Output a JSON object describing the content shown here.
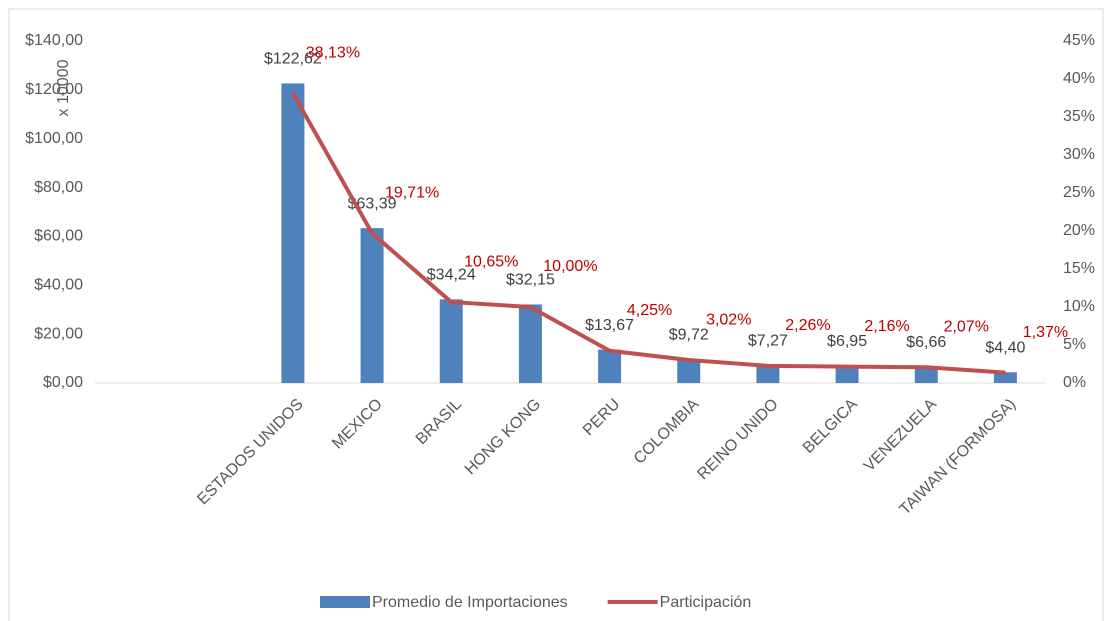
{
  "chart_data": {
    "type": "combo",
    "y_axis_label": "x 10000",
    "categories": [
      null,
      null,
      "ESTADOS UNIDOS",
      "MEXICO",
      "BRASIL",
      "HONG KONG",
      "PERU",
      "COLOMBIA",
      "REINO UNIDO",
      "BELGICA",
      "VENEZUELA",
      "TAIWAN (FORMOSA)"
    ],
    "series": [
      {
        "name": "Promedio de Importaciones",
        "color": "#4f81bd",
        "type": "bar",
        "values": [
          null,
          null,
          122.62,
          63.39,
          34.24,
          32.15,
          13.67,
          9.72,
          7.27,
          6.95,
          6.66,
          4.4
        ],
        "value_labels": [
          null,
          null,
          "$122,62",
          "$63,39",
          "$34,24",
          "$32,15",
          "$13,67",
          "$9,72",
          "$7,27",
          "$6,95",
          "$6,66",
          "$4,40"
        ]
      },
      {
        "name": "Participación",
        "color": "#c0504d",
        "type": "line",
        "axis": "y2",
        "values": [
          null,
          null,
          38.13,
          19.71,
          10.65,
          10.0,
          4.25,
          3.02,
          2.26,
          2.16,
          2.07,
          1.37
        ],
        "value_labels": [
          null,
          null,
          "38,13%",
          "19,71%",
          "10,65%",
          "10,00%",
          "4,25%",
          "3,02%",
          "2,26%",
          "2,16%",
          "2,07%",
          "1,37%"
        ]
      }
    ],
    "ylim": [
      0,
      140
    ],
    "yticks": [
      {
        "value": 0,
        "label": "$0,00"
      },
      {
        "value": 20,
        "label": "$20,00"
      },
      {
        "value": 40,
        "label": "$40,00"
      },
      {
        "value": 60,
        "label": "$60,00"
      },
      {
        "value": 80,
        "label": "$80,00"
      },
      {
        "value": 100,
        "label": "$100,00"
      },
      {
        "value": 120,
        "label": "$120,00"
      },
      {
        "value": 140,
        "label": "$140,00"
      }
    ],
    "y2lim": [
      0,
      45
    ],
    "y2ticks": [
      {
        "value": 0,
        "label": "0%"
      },
      {
        "value": 5,
        "label": "5%"
      },
      {
        "value": 10,
        "label": "10%"
      },
      {
        "value": 15,
        "label": "15%"
      },
      {
        "value": 20,
        "label": "20%"
      },
      {
        "value": 25,
        "label": "25%"
      },
      {
        "value": 30,
        "label": "30%"
      },
      {
        "value": 35,
        "label": "35%"
      },
      {
        "value": 40,
        "label": "40%"
      },
      {
        "value": 45,
        "label": "45%"
      }
    ],
    "grid": false,
    "legend": "bottom"
  }
}
